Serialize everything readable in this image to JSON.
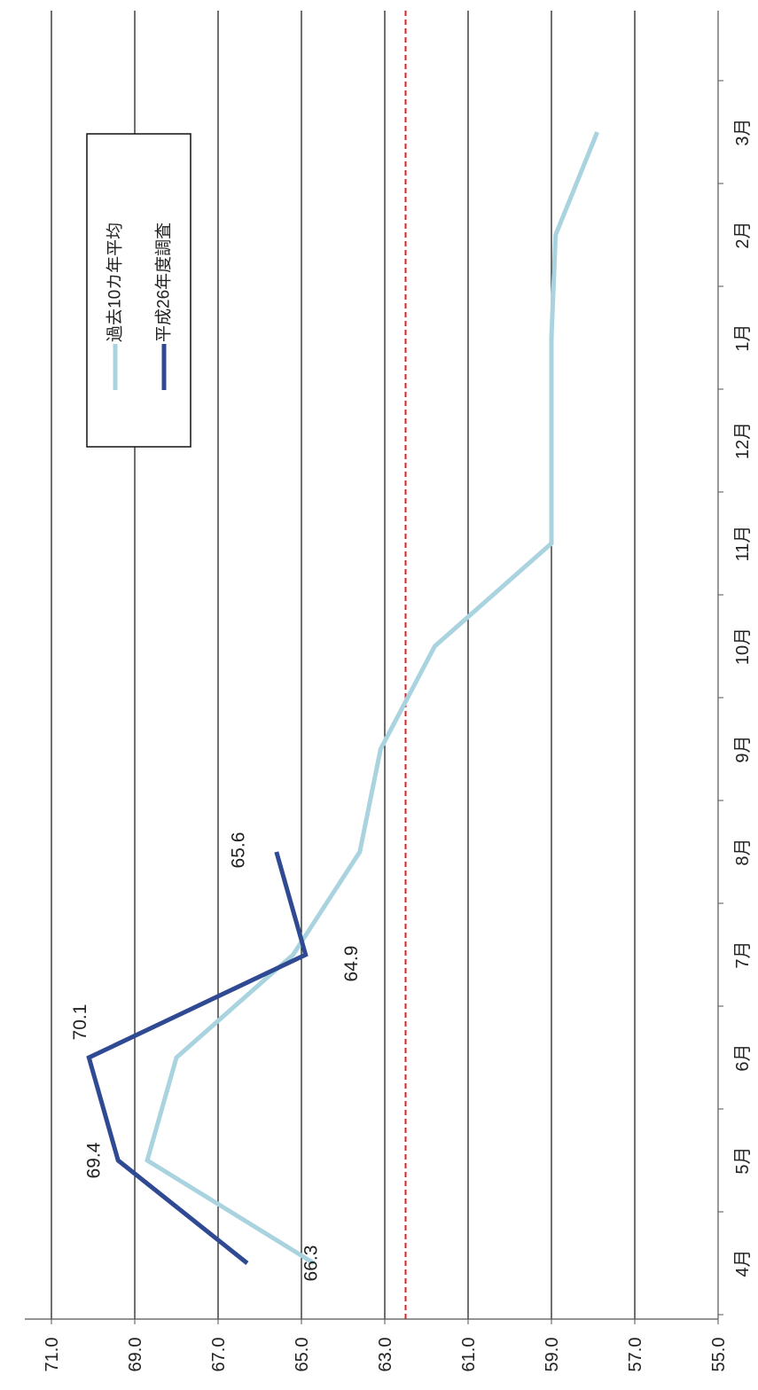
{
  "chart_data": {
    "type": "line",
    "orientation": "rotated 90° clockwise (value axis along bottom, months running top to bottom)",
    "title": "",
    "xlabel": "",
    "ylabel": "",
    "categories": [
      "4月",
      "5月",
      "6月",
      "7月",
      "8月",
      "9月",
      "10月",
      "11月",
      "12月",
      "1月",
      "2月",
      "3月"
    ],
    "y_ticks": [
      "55.0",
      "57.0",
      "59.0",
      "61.0",
      "63.0",
      "65.0",
      "67.0",
      "69.0",
      "71.0"
    ],
    "ylim": [
      55,
      71
    ],
    "grid": true,
    "reference_line": {
      "value": 62.5,
      "color": "#e02020",
      "style": "dashed"
    },
    "legend_position": "upper-middle",
    "series": [
      {
        "name": "過去10カ年平均",
        "color": "#a9d3df",
        "values": [
          64.7,
          68.7,
          68.0,
          65.2,
          63.6,
          63.1,
          61.8,
          59.0,
          59.0,
          59.0,
          58.9,
          57.9
        ]
      },
      {
        "name": "平成26年度調査",
        "color": "#2f4a93",
        "values": [
          66.3,
          69.4,
          70.1,
          64.9,
          65.6,
          null,
          null,
          null,
          null,
          null,
          null,
          null
        ],
        "data_labels": [
          "66.3",
          "69.4",
          "70.1",
          "64.9",
          "65.6"
        ]
      }
    ]
  }
}
